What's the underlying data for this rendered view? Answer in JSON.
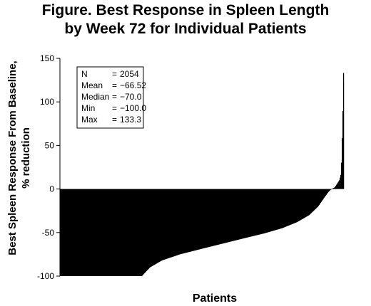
{
  "chart_data": {
    "type": "bar",
    "title": "Figure. Best Response in Spleen Length",
    "subtitle": "by Week 72 for Individual Patients",
    "ylabel_line1": "Best Spleen Response From Baseline,",
    "ylabel_line2": "% reduction",
    "xlabel": "Patients",
    "ylim": [
      -100,
      150
    ],
    "yticks": [
      150,
      100,
      50,
      0,
      -50,
      -100
    ],
    "ytick_labels": [
      "150",
      "100",
      "50",
      "0",
      "-50",
      "-100"
    ],
    "grid": false,
    "bar_color": "#000000",
    "n_patients": 2054,
    "waterfall_profile": [
      [
        0.0,
        -100
      ],
      [
        0.273,
        -100
      ],
      [
        0.3,
        -90
      ],
      [
        0.34,
        -82
      ],
      [
        0.4,
        -75
      ],
      [
        0.48,
        -68
      ],
      [
        0.55,
        -62
      ],
      [
        0.62,
        -56
      ],
      [
        0.68,
        -51
      ],
      [
        0.74,
        -45
      ],
      [
        0.79,
        -38
      ],
      [
        0.83,
        -30
      ],
      [
        0.86,
        -20
      ],
      [
        0.88,
        -10
      ],
      [
        0.895,
        -3
      ],
      [
        0.904,
        0
      ],
      [
        0.915,
        2
      ],
      [
        0.93,
        10
      ],
      [
        0.936,
        18
      ],
      [
        0.94,
        65
      ],
      [
        0.945,
        133.3
      ]
    ],
    "stats_box": {
      "rows": [
        {
          "label": "N",
          "eq": "=",
          "value": "2054"
        },
        {
          "label": "Mean",
          "eq": "=",
          "value": "−66.52"
        },
        {
          "label": "Median",
          "eq": "=",
          "value": "−70.0"
        },
        {
          "label": "Min",
          "eq": "=",
          "value": "−100.0"
        },
        {
          "label": "Max",
          "eq": "=",
          "value": "133.3"
        }
      ]
    }
  }
}
